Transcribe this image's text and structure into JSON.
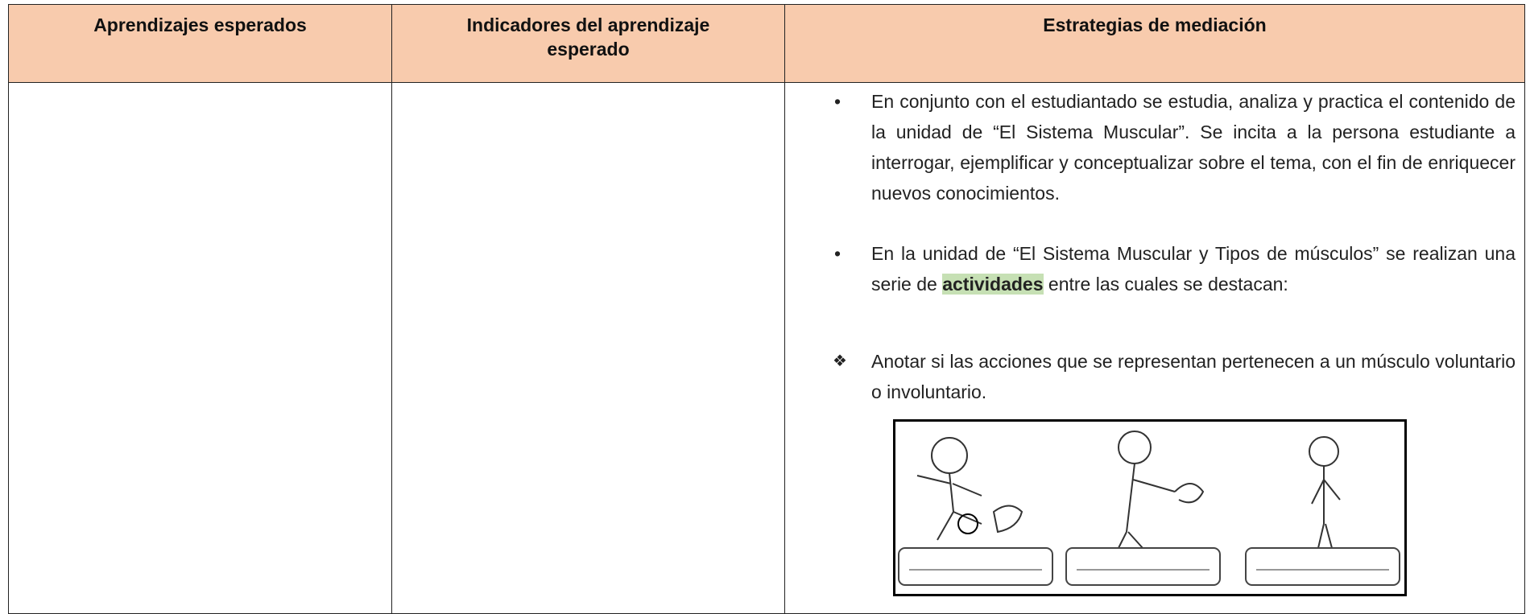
{
  "table": {
    "headers": [
      "Aprendizajes esperados",
      "Indicadores del aprendizaje esperado",
      "Estrategias de mediación"
    ],
    "rows": [
      {
        "strategies": {
          "bullet_1": "En conjunto con el estudiantado se estudia, analiza y practica el contenido de la unidad de “El Sistema Muscular”. Se incita a la persona estudiante a interrogar, ejemplificar y conceptualizar sobre el tema, con el fin de enriquecer nuevos conocimientos.",
          "bullet_2": {
            "before": "En la unidad de “El Sistema Muscular y Tipos de músculos” se realizan una serie de ",
            "highlight": "actividades",
            "after": " entre las cuales se destacan:"
          },
          "activity_1": "Anotar si las acciones que se representan pertenecen a un músculo voluntario o involuntario."
        }
      }
    ]
  }
}
